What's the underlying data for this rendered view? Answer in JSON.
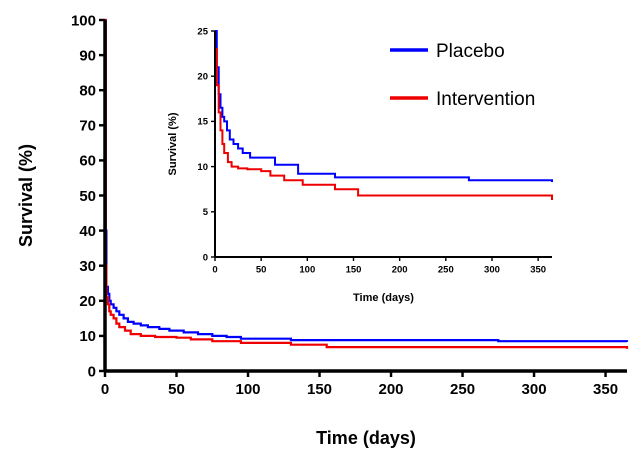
{
  "colors": {
    "placebo": "#0000ff",
    "intervention": "#ee0000",
    "axis": "#000000"
  },
  "chart_data": [
    {
      "type": "line",
      "chart": "main",
      "xlabel": "Time (days)",
      "ylabel": "Survival (%)",
      "xlim": [
        0,
        365
      ],
      "ylim": [
        0,
        100
      ],
      "xticks": [
        0,
        50,
        100,
        150,
        200,
        250,
        300,
        350
      ],
      "yticks": [
        0,
        10,
        20,
        30,
        40,
        50,
        60,
        70,
        80,
        90,
        100
      ],
      "grid": false,
      "legend": "none",
      "series": [
        {
          "name": "Placebo",
          "color": "#0000ff",
          "x": [
            0,
            0.5,
            1,
            2,
            3,
            4,
            6,
            8,
            10,
            13,
            16,
            20,
            25,
            30,
            38,
            45,
            55,
            65,
            75,
            85,
            95,
            130,
            275,
            365
          ],
          "y": [
            100,
            40,
            24,
            22,
            20,
            19,
            18,
            17,
            16,
            15,
            14,
            13.5,
            13,
            12.5,
            12,
            11.5,
            11,
            10.5,
            10,
            9.7,
            9.2,
            8.8,
            8.5,
            8.3
          ]
        },
        {
          "name": "Intervention",
          "color": "#ee0000",
          "x": [
            0,
            0.5,
            1,
            2,
            3,
            4,
            6,
            8,
            10,
            14,
            18,
            25,
            35,
            50,
            60,
            75,
            95,
            130,
            155,
            360,
            365
          ],
          "y": [
            100,
            30,
            21,
            19,
            17,
            16,
            15,
            13.5,
            12.5,
            11.5,
            10.5,
            10,
            9.7,
            9.5,
            9,
            8.5,
            8,
            7.5,
            6.8,
            6.8,
            6.3
          ]
        }
      ]
    },
    {
      "type": "line",
      "chart": "inset",
      "xlabel": "Time (days)",
      "ylabel": "Survival (%)",
      "xlim": [
        0,
        365
      ],
      "ylim": [
        0,
        25
      ],
      "xticks": [
        0,
        50,
        100,
        150,
        200,
        250,
        300,
        350
      ],
      "yticks": [
        0,
        5,
        10,
        15,
        20,
        25
      ],
      "grid": false,
      "legend": "top-right",
      "series": [
        {
          "name": "Placebo",
          "color": "#0000ff",
          "x": [
            0,
            2,
            4,
            6,
            8,
            10,
            13,
            16,
            20,
            25,
            30,
            38,
            50,
            65,
            90,
            130,
            275,
            365
          ],
          "y": [
            25,
            21,
            18,
            16.5,
            15.5,
            15,
            14,
            13,
            12.5,
            12,
            11.5,
            11,
            11,
            10.2,
            9.2,
            8.8,
            8.5,
            8.3
          ]
        },
        {
          "name": "Intervention",
          "color": "#ee0000",
          "x": [
            0,
            2,
            4,
            6,
            8,
            10,
            14,
            18,
            25,
            35,
            50,
            60,
            75,
            95,
            130,
            155,
            360,
            365
          ],
          "y": [
            23,
            19,
            16,
            14,
            12.5,
            11.5,
            10.5,
            10,
            9.8,
            9.7,
            9.5,
            9,
            8.5,
            8,
            7.5,
            6.8,
            6.8,
            6.3
          ]
        }
      ]
    }
  ]
}
